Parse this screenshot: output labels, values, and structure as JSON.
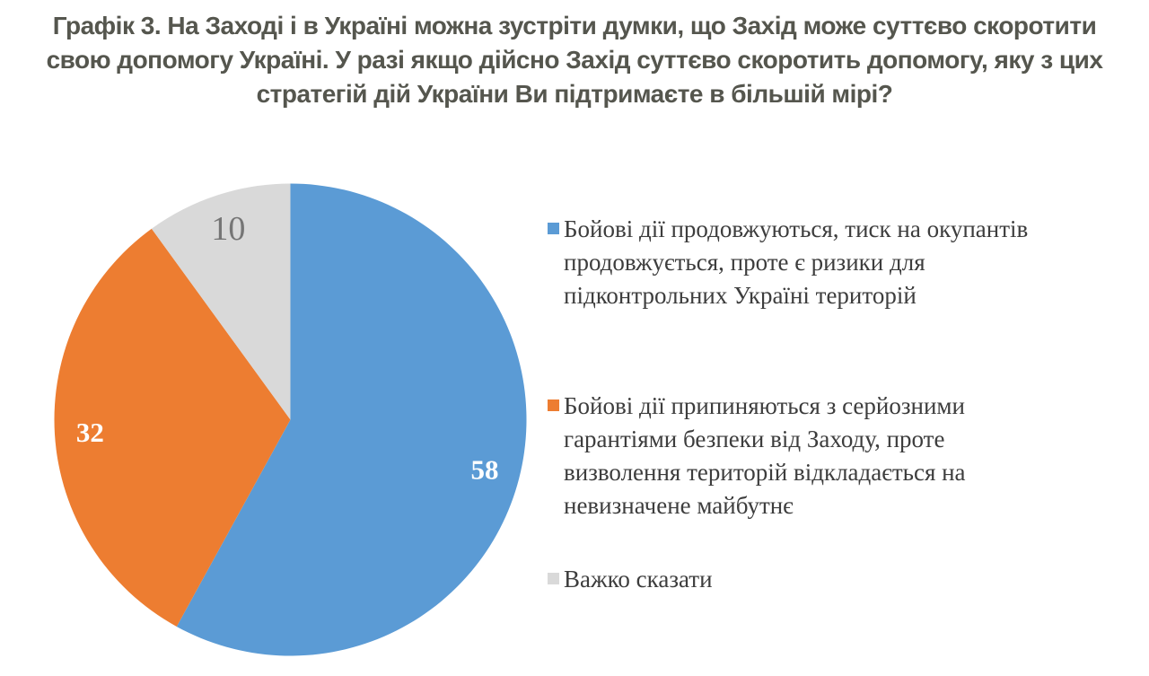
{
  "title": "Графік 3. На Заході і в Україні можна зустріти думки, що Захід може суттєво скоротити\nсвою допомогу Україні. У разі якщо дійсно Захід суттєво скоротить допомогу, яку з цих\nстратегій дій України Ви підтримаєте в більшій мірі?",
  "chart_data": {
    "type": "pie",
    "title": "Графік 3. На Заході і в Україні можна зустріти думки, що Захід може суттєво скоротити свою допомогу Україні. У разі якщо дійсно Захід суттєво скоротить допомогу, яку з цих стратегій дій України Ви підтримаєте в більшій мірі?",
    "categories": [
      "Бойові дії продовжуються, тиск на окупантів продовжується, проте є ризики для підконтрольних Україні територій",
      "Бойові дії припиняються з серйозними гарантіями безпеки від Заходу, проте визволення територій відкладається на невизначене майбутнє",
      "Важко сказати"
    ],
    "values": [
      58,
      32,
      10
    ],
    "colors": [
      "#5B9BD5",
      "#ED7D31",
      "#D9D9D9"
    ],
    "data_label_colors": [
      "#FFFFFF",
      "#FFFFFF",
      "#757575"
    ],
    "data_label_sizes": [
      31,
      31,
      38
    ],
    "data_label_weights": [
      "bold",
      "bold",
      "normal"
    ],
    "data_label_radius": 0.85,
    "start_angle_deg": 0,
    "direction": "clockwise",
    "legend_position": "right",
    "grid": false
  },
  "legend": {
    "items": [
      {
        "label": "Бойові дії продовжуються, тиск на окупантів\nпродовжується, проте є ризики для\nпідконтрольних Україні територій",
        "color": "#5B9BD5"
      },
      {
        "label": "Бойові дії припиняються з серйозними\nгарантіями безпеки від Заходу, проте\nвизволення територій відкладається на\nневизначене майбутнє",
        "color": "#ED7D31"
      },
      {
        "label": "Важко сказати",
        "color": "#D9D9D9"
      }
    ]
  }
}
